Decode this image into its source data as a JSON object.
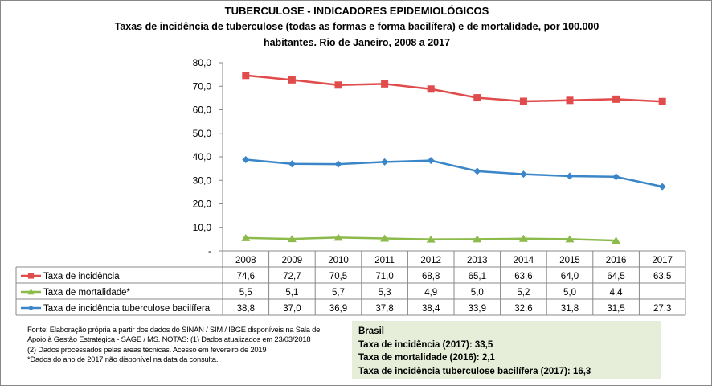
{
  "title": "TUBERCULOSE - INDICADORES EPIDEMIOLÓGICOS",
  "subtitle_line1": "Taxas de incidência de tuberculose (todas as formas e forma bacilífera) e de mortalidade,  por 100.000",
  "subtitle_line2": "habitantes. Rio de Janeiro, 2008 a 2017",
  "chart_data": {
    "type": "line",
    "title": "TUBERCULOSE - INDICADORES EPIDEMIOLÓGICOS",
    "categories": [
      "2008",
      "2009",
      "2010",
      "2011",
      "2012",
      "2013",
      "2014",
      "2015",
      "2016",
      "2017"
    ],
    "ylim": [
      0,
      80
    ],
    "yticks": [
      "-",
      "10,0",
      "20,0",
      "30,0",
      "40,0",
      "50,0",
      "60,0",
      "70,0",
      "80,0"
    ],
    "grid": false,
    "legend": "data-table",
    "series": [
      {
        "name": "Taxa de incidência",
        "color": "#e04b4b",
        "marker": "square",
        "values": [
          74.6,
          72.7,
          70.5,
          71.0,
          68.8,
          65.1,
          63.6,
          64.0,
          64.5,
          63.5
        ],
        "labels": [
          "74,6",
          "72,7",
          "70,5",
          "71,0",
          "68,8",
          "65,1",
          "63,6",
          "64,0",
          "64,5",
          "63,5"
        ]
      },
      {
        "name": "Taxa de mortalidade*",
        "color": "#8cbb4c",
        "marker": "triangle",
        "values": [
          5.5,
          5.1,
          5.7,
          5.3,
          4.9,
          5.0,
          5.2,
          5.0,
          4.4,
          null
        ],
        "labels": [
          "5,5",
          "5,1",
          "5,7",
          "5,3",
          "4,9",
          "5,0",
          "5,2",
          "5,0",
          "4,4",
          ""
        ]
      },
      {
        "name": "Taxa de incidência tuberculose bacilífera",
        "color": "#3a86c8",
        "marker": "diamond",
        "values": [
          38.8,
          37.0,
          36.9,
          37.8,
          38.4,
          33.9,
          32.6,
          31.8,
          31.5,
          27.3
        ],
        "labels": [
          "38,8",
          "37,0",
          "36,9",
          "37,8",
          "38,4",
          "33,9",
          "32,6",
          "31,8",
          "31,5",
          "27,3"
        ]
      }
    ]
  },
  "footnote": [
    "Fonte: Elaboração própria a partir dos dados do SINAN / SIM / IBGE disponíveis na Sala de",
    "Apoio  à Gestão Estratégica - SAGE / MS. NOTAS: (1) Dados atualizados em 23/03/2018",
    "(2) Dados processados pelas áreas técnicas. Acesso em fevereiro de 2019",
    "*Dados do ano de 2017 não disponível na data da consulta."
  ],
  "brasil": {
    "heading": "Brasil",
    "lines": [
      "Taxa de incidência  (2017): 33,5",
      "Taxa de mortalidade (2016): 2,1",
      "Taxa de incidência  tuberculose bacilífera  (2017): 16,3"
    ]
  }
}
